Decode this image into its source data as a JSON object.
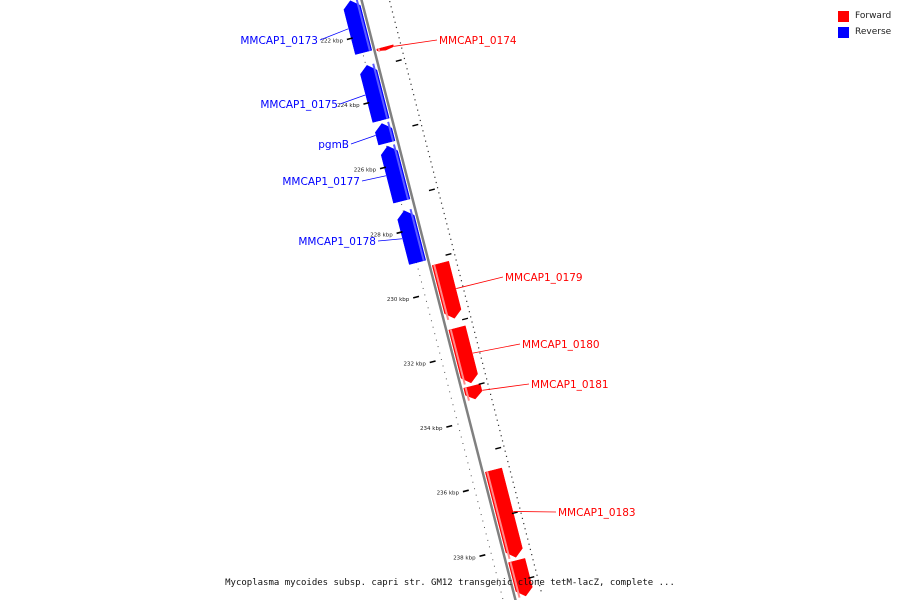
{
  "colors": {
    "forward": "#ff0000",
    "reverse": "#0000ff",
    "axis": "#808080"
  },
  "legend": [
    {
      "label": "Forward",
      "color": "#ff0000"
    },
    {
      "label": "Reverse",
      "color": "#0000ff"
    }
  ],
  "caption": "Mycoplasma mycoides subsp. capri str. GM12 transgenic clone tetM-lacZ, complete ...",
  "scale_unit": "kbp",
  "ticks": [
    {
      "kbp": 222,
      "label": "222 kbp"
    },
    {
      "kbp": 224,
      "label": "224 kbp"
    },
    {
      "kbp": 226,
      "label": "226 kbp"
    },
    {
      "kbp": 228,
      "label": "228 kbp"
    },
    {
      "kbp": 230,
      "label": "230 kbp"
    },
    {
      "kbp": 232,
      "label": "232 kbp"
    },
    {
      "kbp": 234,
      "label": "234 kbp"
    },
    {
      "kbp": 236,
      "label": "236 kbp"
    },
    {
      "kbp": 238,
      "label": "238 kbp"
    }
  ],
  "genes": [
    {
      "name": "MMCAP1_0173",
      "strand": "reverse",
      "start_kbp": 220.9,
      "end_kbp": 222.5
    },
    {
      "name": "MMCAP1_0174",
      "strand": "forward",
      "start_kbp": 222.5,
      "end_kbp": 222.6
    },
    {
      "name": "MMCAP1_0175",
      "strand": "reverse",
      "start_kbp": 222.9,
      "end_kbp": 224.6
    },
    {
      "name": "pgmB",
      "strand": "reverse",
      "start_kbp": 224.7,
      "end_kbp": 225.3
    },
    {
      "name": "MMCAP1_0177",
      "strand": "reverse",
      "start_kbp": 225.4,
      "end_kbp": 227.1
    },
    {
      "name": "MMCAP1_0178",
      "strand": "reverse",
      "start_kbp": 227.4,
      "end_kbp": 229.0
    },
    {
      "name": "MMCAP1_0179",
      "strand": "forward",
      "start_kbp": 229.2,
      "end_kbp": 230.9
    },
    {
      "name": "MMCAP1_0180",
      "strand": "forward",
      "start_kbp": 231.2,
      "end_kbp": 232.9
    },
    {
      "name": "MMCAP1_0181",
      "strand": "forward",
      "start_kbp": 233.0,
      "end_kbp": 233.4
    },
    {
      "name": "MMCAP1_0183",
      "strand": "forward",
      "start_kbp": 235.6,
      "end_kbp": 238.3
    },
    {
      "name": "",
      "strand": "forward",
      "start_kbp": 238.4,
      "end_kbp": 239.5
    }
  ]
}
